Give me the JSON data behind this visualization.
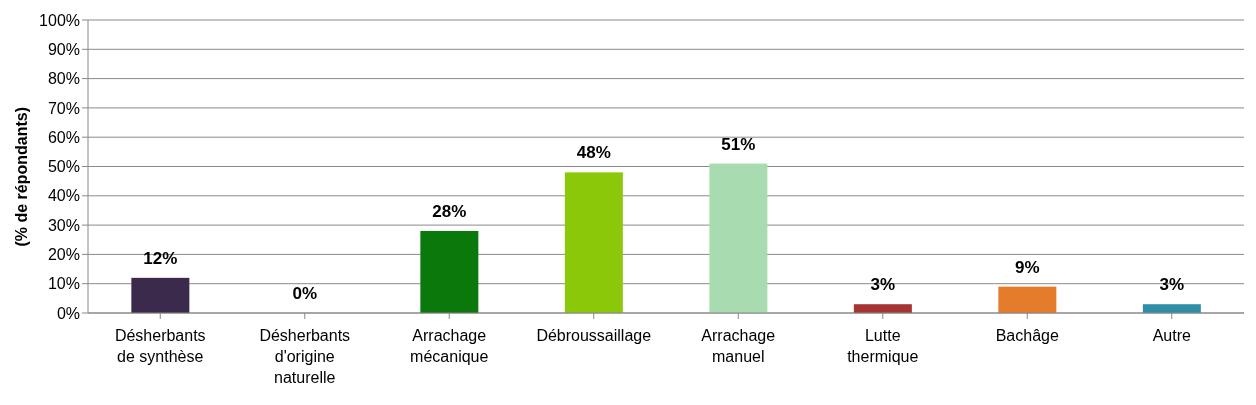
{
  "chart_data": {
    "type": "bar",
    "ylabel": "(% de répondants)",
    "categories": [
      "Désherbants de synthèse",
      "Désherbants d'origine naturelle",
      "Arrachage mécanique",
      "Débroussaillage",
      "Arrachage manuel",
      "Lutte thermique",
      "Bachâge",
      "Autre"
    ],
    "values": [
      12,
      0,
      28,
      48,
      51,
      3,
      9,
      3
    ],
    "value_labels": [
      "12%",
      "0%",
      "28%",
      "48%",
      "51%",
      "3%",
      "9%",
      "3%"
    ],
    "colors": [
      "#3b2a4c",
      "#888888",
      "#0b780b",
      "#8cc80a",
      "#a8dcb0",
      "#a63434",
      "#e47c2c",
      "#2e8ea8"
    ],
    "ylim": [
      0,
      100
    ],
    "yticks": [
      {
        "value": 0,
        "label": "0%"
      },
      {
        "value": 10,
        "label": "10%"
      },
      {
        "value": 20,
        "label": "20%"
      },
      {
        "value": 30,
        "label": "30%"
      },
      {
        "value": 40,
        "label": "40%"
      },
      {
        "value": 50,
        "label": "50%"
      },
      {
        "value": 60,
        "label": "60%"
      },
      {
        "value": 70,
        "label": "70%"
      },
      {
        "value": 80,
        "label": "80%"
      },
      {
        "value": 90,
        "label": "90%"
      },
      {
        "value": 100,
        "label": "100%"
      }
    ],
    "grid": "y",
    "legend": false
  }
}
